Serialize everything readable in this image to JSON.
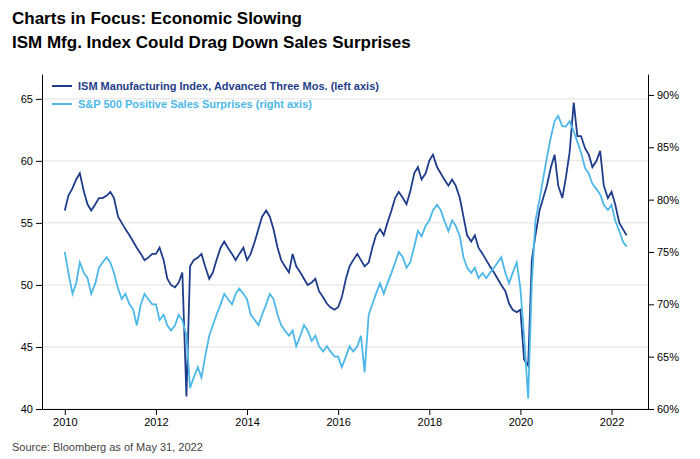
{
  "chart_data": {
    "type": "line",
    "title": "Charts in Focus: Economic Slowing",
    "subtitle": "ISM Mfg. Index Could Drag Down Sales Surprises",
    "annotations": [
      "Source: Bloomberg as of May 31, 2022"
    ],
    "x": [
      2010.0,
      2010.08,
      2010.17,
      2010.25,
      2010.33,
      2010.42,
      2010.5,
      2010.58,
      2010.67,
      2010.75,
      2010.83,
      2010.92,
      2011.0,
      2011.08,
      2011.17,
      2011.25,
      2011.33,
      2011.42,
      2011.5,
      2011.58,
      2011.67,
      2011.75,
      2011.83,
      2011.92,
      2012.0,
      2012.08,
      2012.17,
      2012.25,
      2012.33,
      2012.42,
      2012.5,
      2012.58,
      2012.67,
      2012.75,
      2012.83,
      2012.92,
      2013.0,
      2013.08,
      2013.17,
      2013.25,
      2013.33,
      2013.42,
      2013.5,
      2013.58,
      2013.67,
      2013.75,
      2013.83,
      2013.92,
      2014.0,
      2014.08,
      2014.17,
      2014.25,
      2014.33,
      2014.42,
      2014.5,
      2014.58,
      2014.67,
      2014.75,
      2014.83,
      2014.92,
      2015.0,
      2015.08,
      2015.17,
      2015.25,
      2015.33,
      2015.42,
      2015.5,
      2015.58,
      2015.67,
      2015.75,
      2015.83,
      2015.92,
      2016.0,
      2016.08,
      2016.17,
      2016.25,
      2016.33,
      2016.42,
      2016.5,
      2016.58,
      2016.67,
      2016.75,
      2016.83,
      2016.92,
      2017.0,
      2017.08,
      2017.17,
      2017.25,
      2017.33,
      2017.42,
      2017.5,
      2017.58,
      2017.67,
      2017.75,
      2017.83,
      2017.92,
      2018.0,
      2018.08,
      2018.17,
      2018.25,
      2018.33,
      2018.42,
      2018.5,
      2018.58,
      2018.67,
      2018.75,
      2018.83,
      2018.92,
      2019.0,
      2019.08,
      2019.17,
      2019.25,
      2019.33,
      2019.42,
      2019.5,
      2019.58,
      2019.67,
      2019.75,
      2019.83,
      2019.92,
      2020.0,
      2020.08,
      2020.17,
      2020.25,
      2020.33,
      2020.42,
      2020.5,
      2020.58,
      2020.67,
      2020.75,
      2020.83,
      2020.92,
      2021.0,
      2021.08,
      2021.17,
      2021.25,
      2021.33,
      2021.42,
      2021.5,
      2021.58,
      2021.67,
      2021.75,
      2021.83,
      2021.92,
      2022.0,
      2022.08,
      2022.17,
      2022.25,
      2022.33
    ],
    "xlim": [
      2009.5,
      2022.8
    ],
    "xticks": [
      2010,
      2012,
      2014,
      2016,
      2018,
      2020,
      2022
    ],
    "ylim": [
      40,
      67
    ],
    "yticks": [
      40,
      45,
      50,
      55,
      60,
      65
    ],
    "y2lim": [
      60,
      92
    ],
    "y2ticks": [
      {
        "value": 60,
        "label": "60%"
      },
      {
        "value": 65,
        "label": "65%"
      },
      {
        "value": 70,
        "label": "70%"
      },
      {
        "value": 75,
        "label": "75%"
      },
      {
        "value": 80,
        "label": "80%"
      },
      {
        "value": 85,
        "label": "85%"
      },
      {
        "value": 90,
        "label": "90%"
      }
    ],
    "grid": true,
    "legend": "upper left",
    "series": [
      {
        "name": "ISM Manufacturing Index, Advanced Three Mos. (left axis)",
        "color": "#1f3d8a",
        "values": [
          56.0,
          57.2,
          57.8,
          58.5,
          59.0,
          57.5,
          56.5,
          56.0,
          56.5,
          57.0,
          57.0,
          57.2,
          57.5,
          57.0,
          55.5,
          55.0,
          54.5,
          54.0,
          53.5,
          53.0,
          52.5,
          52.0,
          52.2,
          52.5,
          52.5,
          53.0,
          52.0,
          50.5,
          50.0,
          49.8,
          50.2,
          51.0,
          41.0,
          51.5,
          52.0,
          52.2,
          52.5,
          51.5,
          50.5,
          51.0,
          52.0,
          53.0,
          53.5,
          53.0,
          52.5,
          52.0,
          52.5,
          53.0,
          52.0,
          52.5,
          53.5,
          54.5,
          55.5,
          56.0,
          55.5,
          54.5,
          53.0,
          52.0,
          51.5,
          51.0,
          52.5,
          51.5,
          51.0,
          50.5,
          50.0,
          50.2,
          50.5,
          49.5,
          49.0,
          48.5,
          48.2,
          48.0,
          48.2,
          49.0,
          50.5,
          51.5,
          52.0,
          52.5,
          52.0,
          51.5,
          51.8,
          53.0,
          54.0,
          54.5,
          54.0,
          55.0,
          56.0,
          57.0,
          57.5,
          57.0,
          56.5,
          57.5,
          59.0,
          59.5,
          58.5,
          59.0,
          60.0,
          60.5,
          59.5,
          59.0,
          58.5,
          58.0,
          58.5,
          58.0,
          57.0,
          55.5,
          54.0,
          53.5,
          54.0,
          53.0,
          52.5,
          52.0,
          51.5,
          51.0,
          50.5,
          50.0,
          49.5,
          48.5,
          48.0,
          47.8,
          48.0,
          44.0,
          43.5,
          52.0,
          54.0,
          56.0,
          57.0,
          58.0,
          59.5,
          60.5,
          58.0,
          57.0,
          58.7,
          60.7,
          64.7,
          62.0,
          62.0,
          61.0,
          60.5,
          59.5,
          60.0,
          60.8,
          58.0,
          57.0,
          57.5,
          56.5,
          55.0,
          54.5,
          54.0
        ]
      },
      {
        "name": "S&P 500 Positive Sales Surprises (right axis)",
        "color": "#4db8e8",
        "axis": "y2",
        "values": [
          75.0,
          73.0,
          71.0,
          72.0,
          74.0,
          73.0,
          72.5,
          71.0,
          72.0,
          73.5,
          74.0,
          74.5,
          74.0,
          73.0,
          71.5,
          70.5,
          71.0,
          70.0,
          69.5,
          68.0,
          70.0,
          71.0,
          70.5,
          70.0,
          70.0,
          68.5,
          69.0,
          68.0,
          67.5,
          68.0,
          69.0,
          68.5,
          67.0,
          62.0,
          63.0,
          64.0,
          63.0,
          65.0,
          67.0,
          68.0,
          69.0,
          70.0,
          71.0,
          70.5,
          70.0,
          71.0,
          71.5,
          71.0,
          70.5,
          69.0,
          68.5,
          68.0,
          69.0,
          70.0,
          71.0,
          70.5,
          69.0,
          68.0,
          67.5,
          67.0,
          67.5,
          66.0,
          67.0,
          68.0,
          67.5,
          66.5,
          67.0,
          66.0,
          65.5,
          66.0,
          65.5,
          65.0,
          65.0,
          64.0,
          65.0,
          66.0,
          65.5,
          66.0,
          67.0,
          63.5,
          69.0,
          70.0,
          71.0,
          72.0,
          71.0,
          72.0,
          73.0,
          74.0,
          75.0,
          74.5,
          73.5,
          74.0,
          75.5,
          77.0,
          76.5,
          77.5,
          78.0,
          79.0,
          79.5,
          79.0,
          78.0,
          77.0,
          78.0,
          77.5,
          76.5,
          74.5,
          73.5,
          73.0,
          73.5,
          72.5,
          73.0,
          72.5,
          73.0,
          73.5,
          74.0,
          74.5,
          73.0,
          72.0,
          73.0,
          74.0,
          71.5,
          67.0,
          61.0,
          72.0,
          78.0,
          80.0,
          82.0,
          84.0,
          86.0,
          87.5,
          88.0,
          87.0,
          87.0,
          87.5,
          86.5,
          85.5,
          84.5,
          83.0,
          82.5,
          81.5,
          81.0,
          80.5,
          79.5,
          79.0,
          79.5,
          78.0,
          77.0,
          76.0,
          75.5
        ]
      }
    ]
  }
}
